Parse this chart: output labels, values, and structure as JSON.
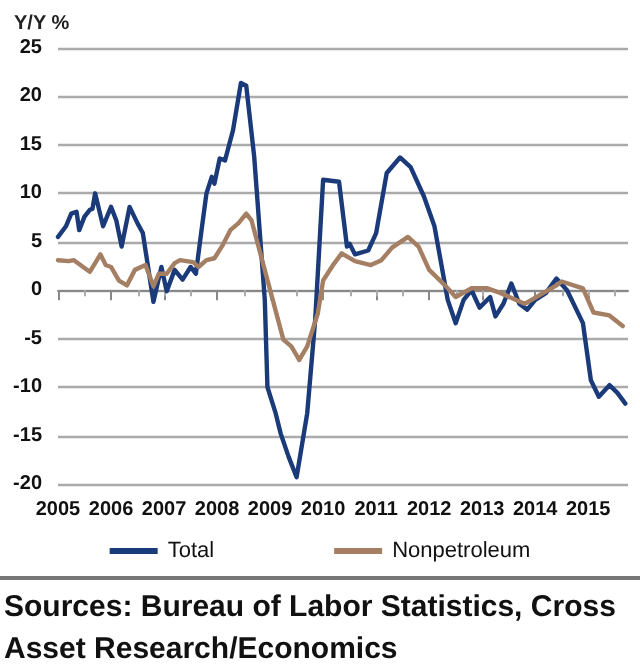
{
  "chart_data": {
    "type": "line",
    "ylabel": "Y/Y %",
    "xlim": [
      2005,
      2015.75
    ],
    "xticks": [
      2005,
      2006,
      2007,
      2008,
      2009,
      2010,
      2011,
      2012,
      2013,
      2014,
      2015
    ],
    "ylim": [
      -20,
      25
    ],
    "yticks": [
      -20,
      -15,
      -10,
      -5,
      0,
      5,
      10,
      15,
      20,
      25
    ],
    "grid": "y",
    "legend": "bottom",
    "marker": "none",
    "line_style": "solid",
    "annotations": [
      "Sources: Bureau of Labor Statistics, Cross Asset Research/Economics"
    ],
    "series": [
      {
        "name": "Total",
        "color": "#1a3a7a",
        "x": [
          2005.0,
          2005.15,
          2005.25,
          2005.35,
          2005.4,
          2005.5,
          2005.6,
          2005.65,
          2005.7,
          2005.85,
          2006.0,
          2006.1,
          2006.2,
          2006.35,
          2006.5,
          2006.6,
          2006.8,
          2006.95,
          2007.05,
          2007.2,
          2007.35,
          2007.5,
          2007.6,
          2007.7,
          2007.8,
          2007.9,
          2007.95,
          2008.05,
          2008.15,
          2008.3,
          2008.45,
          2008.55,
          2008.7,
          2008.9,
          2008.95,
          2009.1,
          2009.2,
          2009.35,
          2009.5,
          2009.7,
          2009.85,
          2010.0,
          2010.3,
          2010.45,
          2010.5,
          2010.6,
          2010.85,
          2011.0,
          2011.2,
          2011.45,
          2011.65,
          2011.9,
          2012.1,
          2012.35,
          2012.5,
          2012.65,
          2012.8,
          2012.95,
          2013.15,
          2013.25,
          2013.4,
          2013.55,
          2013.7,
          2013.85,
          2014.0,
          2014.2,
          2014.4,
          2014.6,
          2014.9,
          2015.05,
          2015.2,
          2015.4,
          2015.55,
          2015.7
        ],
        "values": [
          5.5,
          6.6,
          7.9,
          8.1,
          6.2,
          7.6,
          8.3,
          8.4,
          10.0,
          6.6,
          8.6,
          7.2,
          4.5,
          8.6,
          6.9,
          5.9,
          -1.2,
          2.4,
          -0.1,
          2.1,
          1.1,
          2.4,
          1.7,
          5.9,
          10.0,
          11.7,
          11.0,
          13.6,
          13.4,
          16.5,
          21.4,
          21.1,
          13.8,
          -1.0,
          -10.0,
          -12.6,
          -14.8,
          -17.2,
          -19.3,
          -12.7,
          -3.1,
          11.4,
          11.2,
          4.5,
          4.8,
          3.7,
          4.1,
          5.9,
          12.1,
          13.7,
          12.7,
          9.7,
          6.6,
          -1.0,
          -3.4,
          -1.0,
          0.0,
          -1.8,
          -0.7,
          -2.7,
          -1.4,
          0.7,
          -1.4,
          -2.0,
          -1.0,
          -0.3,
          1.2,
          0.0,
          -3.4,
          -9.3,
          -11.0,
          -9.8,
          -10.6,
          -11.7
        ]
      },
      {
        "name": "Nonpetroleum",
        "color": "#a57f63",
        "x": [
          2005.0,
          2005.2,
          2005.3,
          2005.5,
          2005.6,
          2005.8,
          2005.9,
          2006.0,
          2006.15,
          2006.3,
          2006.45,
          2006.65,
          2006.8,
          2006.9,
          2007.05,
          2007.2,
          2007.3,
          2007.55,
          2007.65,
          2007.8,
          2007.95,
          2008.1,
          2008.25,
          2008.4,
          2008.55,
          2008.65,
          2008.85,
          2009.05,
          2009.25,
          2009.4,
          2009.55,
          2009.7,
          2009.9,
          2010.0,
          2010.2,
          2010.35,
          2010.6,
          2010.9,
          2011.1,
          2011.3,
          2011.6,
          2011.8,
          2012.0,
          2012.3,
          2012.5,
          2012.8,
          2013.1,
          2013.35,
          2013.8,
          2014.15,
          2014.4,
          2014.5,
          2014.9,
          2015.1,
          2015.4,
          2015.65
        ],
        "values": [
          3.1,
          3.0,
          3.1,
          2.3,
          1.9,
          3.7,
          2.6,
          2.4,
          1.0,
          0.5,
          2.1,
          2.6,
          0.4,
          1.7,
          1.7,
          2.8,
          3.1,
          2.9,
          2.4,
          3.1,
          3.3,
          4.6,
          6.2,
          6.9,
          7.9,
          7.2,
          3.1,
          -1.0,
          -5.1,
          -5.8,
          -7.2,
          -5.8,
          -2.4,
          1.0,
          2.7,
          3.8,
          3.0,
          2.6,
          3.1,
          4.4,
          5.5,
          4.5,
          2.1,
          0.5,
          -0.7,
          0.2,
          0.2,
          -0.3,
          -1.4,
          -0.3,
          0.5,
          0.9,
          0.2,
          -2.3,
          -2.6,
          -3.7
        ]
      }
    ]
  }
}
